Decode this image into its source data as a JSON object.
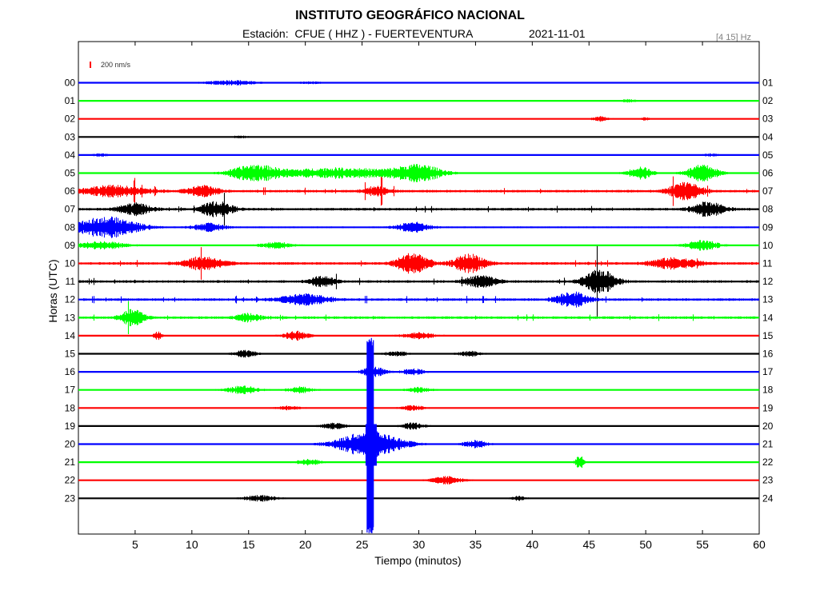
{
  "chart_data": {
    "type": "seismogram-helicorder",
    "title": "INSTITUTO GEOGRÁFICO NACIONAL",
    "station_label": "Estación:  CFUE ( HHZ ) - FUERTEVENTURA",
    "date": "2021-11-01",
    "filter": "[4 15] Hz",
    "scale_label": "200 nm/s",
    "scale_color": "#ff0000",
    "xlabel": "Tiempo (minutos)",
    "ylabel": "Horas (UTC)",
    "xlim": [
      0,
      60
    ],
    "x_ticks": [
      5,
      10,
      15,
      20,
      25,
      30,
      35,
      40,
      45,
      50,
      55,
      60
    ],
    "colors": [
      "#0000ff",
      "#00ff00",
      "#ff0000",
      "#000000"
    ],
    "rows": [
      {
        "left": "00",
        "right": "01",
        "color": "#0000ff",
        "noise": 0.6,
        "events": [
          [
            13.5,
            1.0,
            6
          ],
          [
            20.4,
            0.4,
            3
          ]
        ]
      },
      {
        "left": "01",
        "right": "02",
        "color": "#00ff00",
        "noise": 0.5,
        "events": [
          [
            48.5,
            0.6,
            2
          ]
        ]
      },
      {
        "left": "02",
        "right": "03",
        "color": "#ff0000",
        "noise": 0.6,
        "events": [
          [
            46.0,
            1.0,
            2
          ],
          [
            50.0,
            0.6,
            1
          ]
        ]
      },
      {
        "left": "03",
        "right": "04",
        "color": "#000000",
        "noise": 0.6,
        "events": [
          [
            14.3,
            0.5,
            2
          ]
        ]
      },
      {
        "left": "04",
        "right": "05",
        "color": "#0000ff",
        "noise": 0.6,
        "events": [
          [
            2.0,
            0.6,
            2
          ],
          [
            55.8,
            0.5,
            2
          ]
        ]
      },
      {
        "left": "05",
        "right": "06",
        "color": "#00ff00",
        "noise": 0.8,
        "events": [
          [
            15.5,
            3.0,
            6
          ],
          [
            23.0,
            2.0,
            16
          ],
          [
            30.0,
            3.0,
            6
          ],
          [
            49.5,
            2.5,
            3
          ],
          [
            55.0,
            3.2,
            4
          ]
        ]
      },
      {
        "left": "06",
        "right": "07",
        "color": "#ff0000",
        "noise": 1.6,
        "events": [
          [
            3.0,
            2.0,
            8
          ],
          [
            11.0,
            2.0,
            4
          ],
          [
            26.3,
            1.8,
            3
          ],
          [
            53.5,
            3.5,
            4
          ]
        ]
      },
      {
        "left": "07",
        "right": "08",
        "color": "#000000",
        "noise": 1.6,
        "events": [
          [
            5.0,
            2.2,
            4
          ],
          [
            12.2,
            2.8,
            4
          ],
          [
            55.5,
            2.8,
            4
          ]
        ]
      },
      {
        "left": "08",
        "right": "09",
        "color": "#0000ff",
        "noise": 1.0,
        "events": [
          [
            2.5,
            4.0,
            8
          ],
          [
            11.5,
            1.5,
            4
          ],
          [
            29.5,
            2.0,
            4
          ]
        ]
      },
      {
        "left": "09",
        "right": "10",
        "color": "#00ff00",
        "noise": 0.8,
        "events": [
          [
            2.0,
            1.5,
            6
          ],
          [
            17.5,
            1.2,
            4
          ],
          [
            55.0,
            2.0,
            4
          ]
        ]
      },
      {
        "left": "10",
        "right": "11",
        "color": "#ff0000",
        "noise": 1.6,
        "events": [
          [
            11.0,
            2.5,
            5
          ],
          [
            29.5,
            4.0,
            4
          ],
          [
            34.5,
            3.5,
            4
          ],
          [
            52.5,
            2.0,
            6
          ]
        ]
      },
      {
        "left": "11",
        "right": "12",
        "color": "#000000",
        "noise": 1.6,
        "events": [
          [
            21.5,
            2.0,
            3
          ],
          [
            35.5,
            2.2,
            4
          ],
          [
            46.0,
            4.5,
            4
          ]
        ]
      },
      {
        "left": "12",
        "right": "13",
        "color": "#0000ff",
        "noise": 1.6,
        "events": [
          [
            20.0,
            2.0,
            6
          ],
          [
            43.5,
            3.0,
            4
          ]
        ]
      },
      {
        "left": "13",
        "right": "14",
        "color": "#00ff00",
        "noise": 1.6,
        "events": [
          [
            4.8,
            3.0,
            3
          ],
          [
            15.0,
            1.5,
            3
          ]
        ]
      },
      {
        "left": "14",
        "right": "15",
        "color": "#ff0000",
        "noise": 0.8,
        "events": [
          [
            7.0,
            1.5,
            1
          ],
          [
            19.2,
            1.8,
            3
          ],
          [
            30.0,
            1.2,
            4
          ]
        ]
      },
      {
        "left": "15",
        "right": "16",
        "color": "#000000",
        "noise": 0.6,
        "events": [
          [
            14.7,
            1.4,
            3
          ],
          [
            28.0,
            1.0,
            3
          ],
          [
            34.5,
            1.0,
            3
          ]
        ]
      },
      {
        "left": "16",
        "right": "17",
        "color": "#0000ff",
        "noise": 0.6,
        "events": [
          [
            26.0,
            2.0,
            3
          ],
          [
            29.5,
            1.2,
            3
          ]
        ]
      },
      {
        "left": "17",
        "right": "18",
        "color": "#00ff00",
        "noise": 0.7,
        "events": [
          [
            14.5,
            1.5,
            4
          ],
          [
            19.5,
            1.2,
            3
          ],
          [
            30.0,
            1.0,
            3
          ]
        ]
      },
      {
        "left": "18",
        "right": "19",
        "color": "#ff0000",
        "noise": 0.6,
        "events": [
          [
            18.5,
            0.8,
            3
          ],
          [
            29.5,
            1.0,
            3
          ]
        ]
      },
      {
        "left": "19",
        "right": "20",
        "color": "#000000",
        "noise": 0.7,
        "events": [
          [
            22.5,
            1.2,
            3
          ],
          [
            29.5,
            1.2,
            3
          ]
        ]
      },
      {
        "left": "20",
        "right": "21",
        "color": "#0000ff",
        "noise": 0.7,
        "events": [
          [
            25.7,
            5.0,
            8
          ],
          [
            35.0,
            1.5,
            3
          ]
        ]
      },
      {
        "left": "21",
        "right": "22",
        "color": "#00ff00",
        "noise": 0.6,
        "events": [
          [
            20.3,
            1.2,
            3
          ],
          [
            44.2,
            3.0,
            1
          ]
        ]
      },
      {
        "left": "22",
        "right": "23",
        "color": "#ff0000",
        "noise": 0.6,
        "events": [
          [
            32.5,
            1.5,
            4
          ]
        ]
      },
      {
        "left": "23",
        "right": "24",
        "color": "#000000",
        "noise": 0.6,
        "events": [
          [
            16.0,
            1.2,
            4
          ],
          [
            38.8,
            0.8,
            2
          ]
        ]
      }
    ],
    "big_event": {
      "minute": 25.8,
      "start_row": 15,
      "end_row": 20,
      "color": "#0000ff",
      "amplitude": "clipped"
    }
  }
}
